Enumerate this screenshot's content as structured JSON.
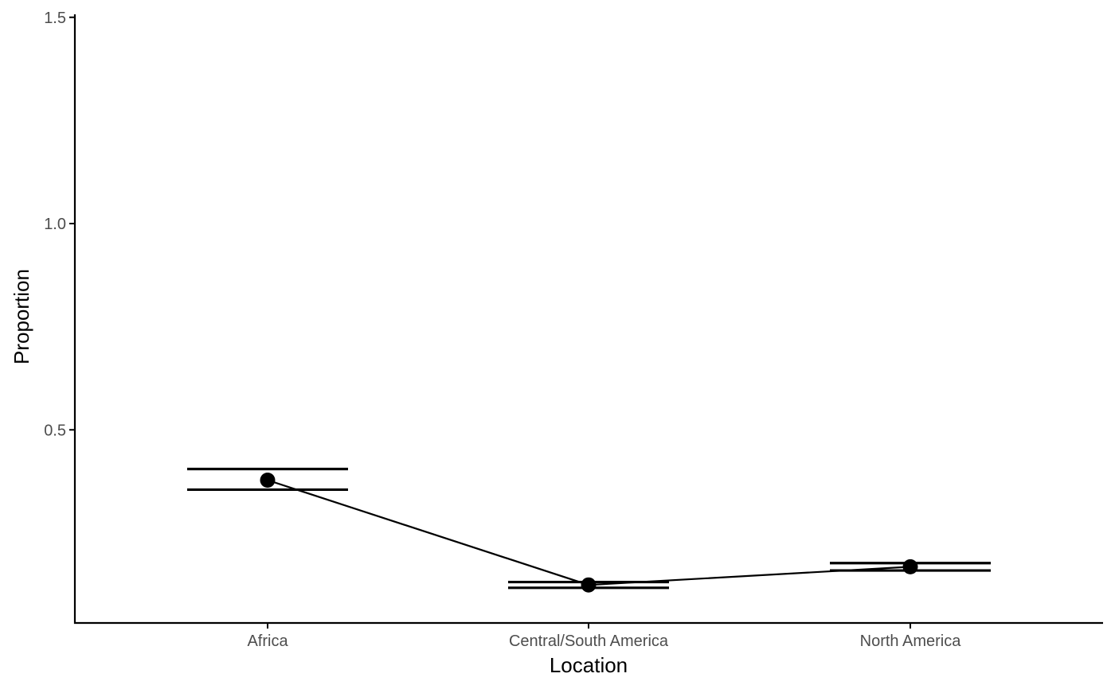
{
  "colors": {
    "ink": "#000000",
    "tick_text": "#4d4d4d",
    "background": "#ffffff"
  },
  "chart_data": {
    "type": "line",
    "title": "",
    "xlabel": "Location",
    "ylabel": "Proportion",
    "categories": [
      "Africa",
      "Central/South America",
      "North America"
    ],
    "y": [
      0.378,
      0.124,
      0.168
    ],
    "error_low": [
      0.355,
      0.117,
      0.159
    ],
    "error_high": [
      0.405,
      0.131,
      0.177
    ],
    "ylim": [
      0.0,
      1.5
    ],
    "yticks": [
      0.5,
      1.0,
      1.5
    ],
    "ytick_labels": [
      "0.5",
      "1.0",
      "1.5"
    ],
    "grid": false,
    "legend": "none"
  }
}
